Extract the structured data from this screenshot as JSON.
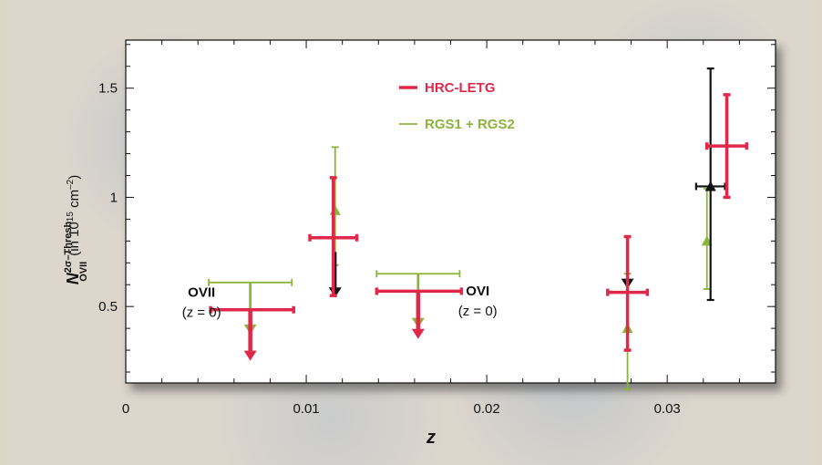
{
  "chart_data": {
    "type": "scatter",
    "xlabel": "z",
    "ylabel_main": "N",
    "ylabel_sup": "2σ–Thresh",
    "ylabel_sub": "OVII",
    "ylabel_units": "(in 10",
    "ylabel_units_exp": "15",
    "ylabel_units_rest": " cm",
    "ylabel_units_exp2": "–2",
    "ylabel_units_end": ")",
    "xlim": [
      0,
      0.036
    ],
    "ylim": [
      0.15,
      1.72
    ],
    "x_ticks": [
      {
        "value": 0,
        "label": "0"
      },
      {
        "value": 0.01,
        "label": "0.01"
      },
      {
        "value": 0.02,
        "label": "0.02"
      },
      {
        "value": 0.03,
        "label": "0.03"
      }
    ],
    "y_ticks": [
      {
        "value": 0.5,
        "label": "0.5"
      },
      {
        "value": 1.0,
        "label": "1"
      },
      {
        "value": 1.5,
        "label": "1.5"
      }
    ],
    "colors": {
      "hrc": "#e0294a",
      "rgs": "#8cb43a",
      "black": "#111111"
    },
    "legend": [
      {
        "label": "HRC-LETG",
        "color": "#e0294a"
      },
      {
        "label": "RGS1 + RGS2",
        "color": "#8cb43a"
      }
    ],
    "annotations": [
      {
        "label": "OVII",
        "sub": "(z = 0)",
        "x": 0.0042,
        "y": 0.545
      },
      {
        "label": "OVI",
        "sub": "(z = 0)",
        "x": 0.0195,
        "y": 0.55
      }
    ],
    "series": [
      {
        "name": "HRC-LETG",
        "points": [
          {
            "x": 0.0069,
            "y": 0.485,
            "xerr": [
              0.0047,
              0.0093
            ],
            "upper_limit": true,
            "arrow_to": 0.26
          },
          {
            "x": 0.0115,
            "y": 0.815,
            "xerr": [
              0.0102,
              0.0128
            ],
            "yerr": [
              0.55,
              1.09
            ]
          },
          {
            "x": 0.0162,
            "y": 0.57,
            "xerr": [
              0.0139,
              0.0186
            ],
            "upper_limit": true,
            "arrow_to": 0.36
          },
          {
            "x": 0.0278,
            "y": 0.565,
            "xerr": [
              0.0267,
              0.0289
            ],
            "yerr": [
              0.3,
              0.82
            ]
          },
          {
            "x": 0.0333,
            "y": 1.235,
            "xerr": [
              0.0322,
              0.0344
            ],
            "yerr": [
              1.0,
              1.47
            ]
          }
        ]
      },
      {
        "name": "RGS1 + RGS2",
        "points": [
          {
            "x": 0.0069,
            "y": 0.61,
            "xerr": [
              0.0046,
              0.0092
            ],
            "upper_limit": true,
            "arrow_to": 0.38
          },
          {
            "x": 0.0116,
            "y": 0.94,
            "yerr": [
              0.69,
              1.23
            ]
          },
          {
            "x": 0.0162,
            "y": 0.65,
            "xerr": [
              0.0139,
              0.0185
            ],
            "upper_limit": true,
            "arrow_to": 0.41
          },
          {
            "x": 0.0278,
            "y": 0.4,
            "yerr": [
              0.12,
              0.65
            ]
          },
          {
            "x": 0.0322,
            "y": 0.8,
            "yerr": [
              0.58,
              1.04
            ]
          }
        ]
      },
      {
        "name": "",
        "color_key": "black",
        "points": [
          {
            "x": 0.0116,
            "y": 0.75,
            "upper_limit": true,
            "arrow_to": 0.55
          },
          {
            "x": 0.0278,
            "y": 0.82,
            "upper_limit": true,
            "arrow_to": 0.59
          },
          {
            "x": 0.0324,
            "y": 1.05,
            "xerr": [
              0.0316,
              0.0332
            ],
            "yerr": [
              0.53,
              1.59
            ]
          }
        ]
      }
    ]
  }
}
